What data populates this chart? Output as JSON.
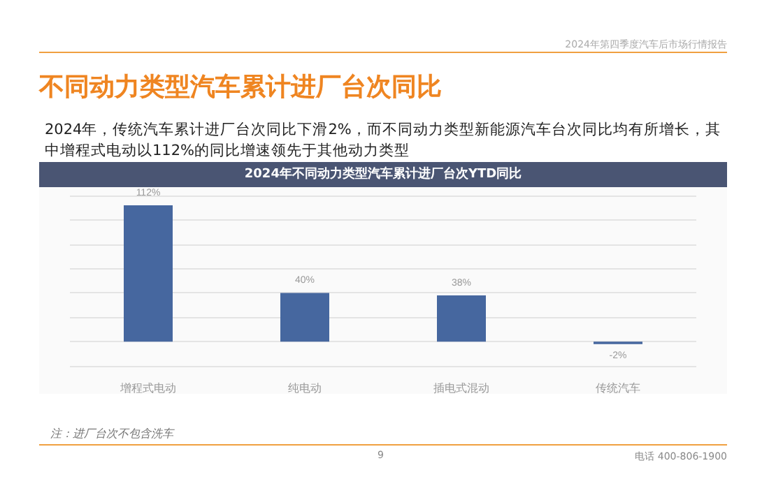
{
  "chart_data": {
    "type": "bar",
    "title": "不同动力类型汽车累计进厂台次同比",
    "subtitle": "2024年，传统汽车累计进厂台次同比下滑2%，而不同动力类型新能源汽车台次同比均有所增长，其中增程式电动以112%的同比增速领先于其他动力类型",
    "annotations": [
      "2024年第四季度汽车后市场行情报告",
      "2024年不同动力类型汽车累计进厂台次YTD同比",
      "注：进厂台次不包含洗车",
      "9",
      "电话 400-806-1900"
    ],
    "categories": [
      "增程式电动",
      "纯电动",
      "插电式混动",
      "传统汽车"
    ],
    "values": [
      112,
      40,
      38,
      -2
    ],
    "value_labels": [
      "112%",
      "40%",
      "38%",
      "-2%"
    ],
    "color": "#46679f",
    "ylim": [
      -20,
      120
    ],
    "yticks": [
      {
        "value": -20,
        "label": null
      },
      {
        "value": 0,
        "label": null
      },
      {
        "value": 20,
        "label": null
      },
      {
        "value": 40,
        "label": null
      },
      {
        "value": 60,
        "label": null
      },
      {
        "value": 80,
        "label": null
      },
      {
        "value": 100,
        "label": null
      },
      {
        "value": 120,
        "label": null
      }
    ],
    "tick_labels": "x",
    "grid": "y"
  }
}
